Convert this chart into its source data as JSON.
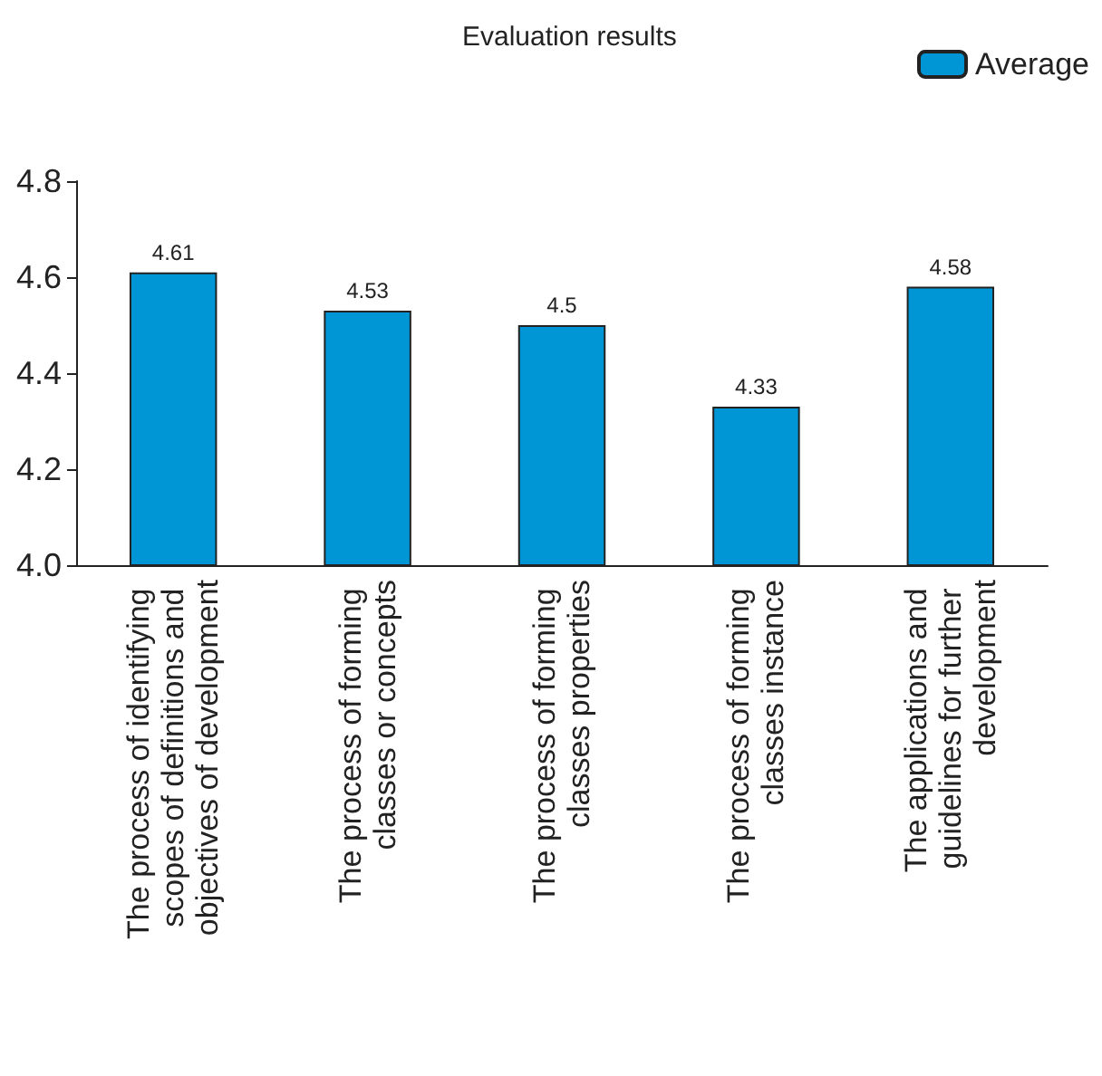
{
  "chart_data": {
    "type": "bar",
    "title": "Evaluation results",
    "categories": [
      "The process of identifying scopes of definitions and objectives of development",
      "The process of forming classes or concepts",
      "The process of forming classes properties",
      "The process of forming classes instance",
      "The applications and guidelines for further development"
    ],
    "series": [
      {
        "name": "Average",
        "color": "#0096d6",
        "values": [
          4.61,
          4.53,
          4.5,
          4.33,
          4.58
        ]
      }
    ],
    "ylim": [
      4.0,
      4.8
    ],
    "yticks": [
      {
        "value": 4.0,
        "label": "4.0"
      },
      {
        "value": 4.2,
        "label": "4.2"
      },
      {
        "value": 4.4,
        "label": "4.4"
      },
      {
        "value": 4.6,
        "label": "4.6"
      },
      {
        "value": 4.8,
        "label": "4.8"
      }
    ],
    "data_labels": true,
    "grid": false,
    "legend": "top right"
  }
}
